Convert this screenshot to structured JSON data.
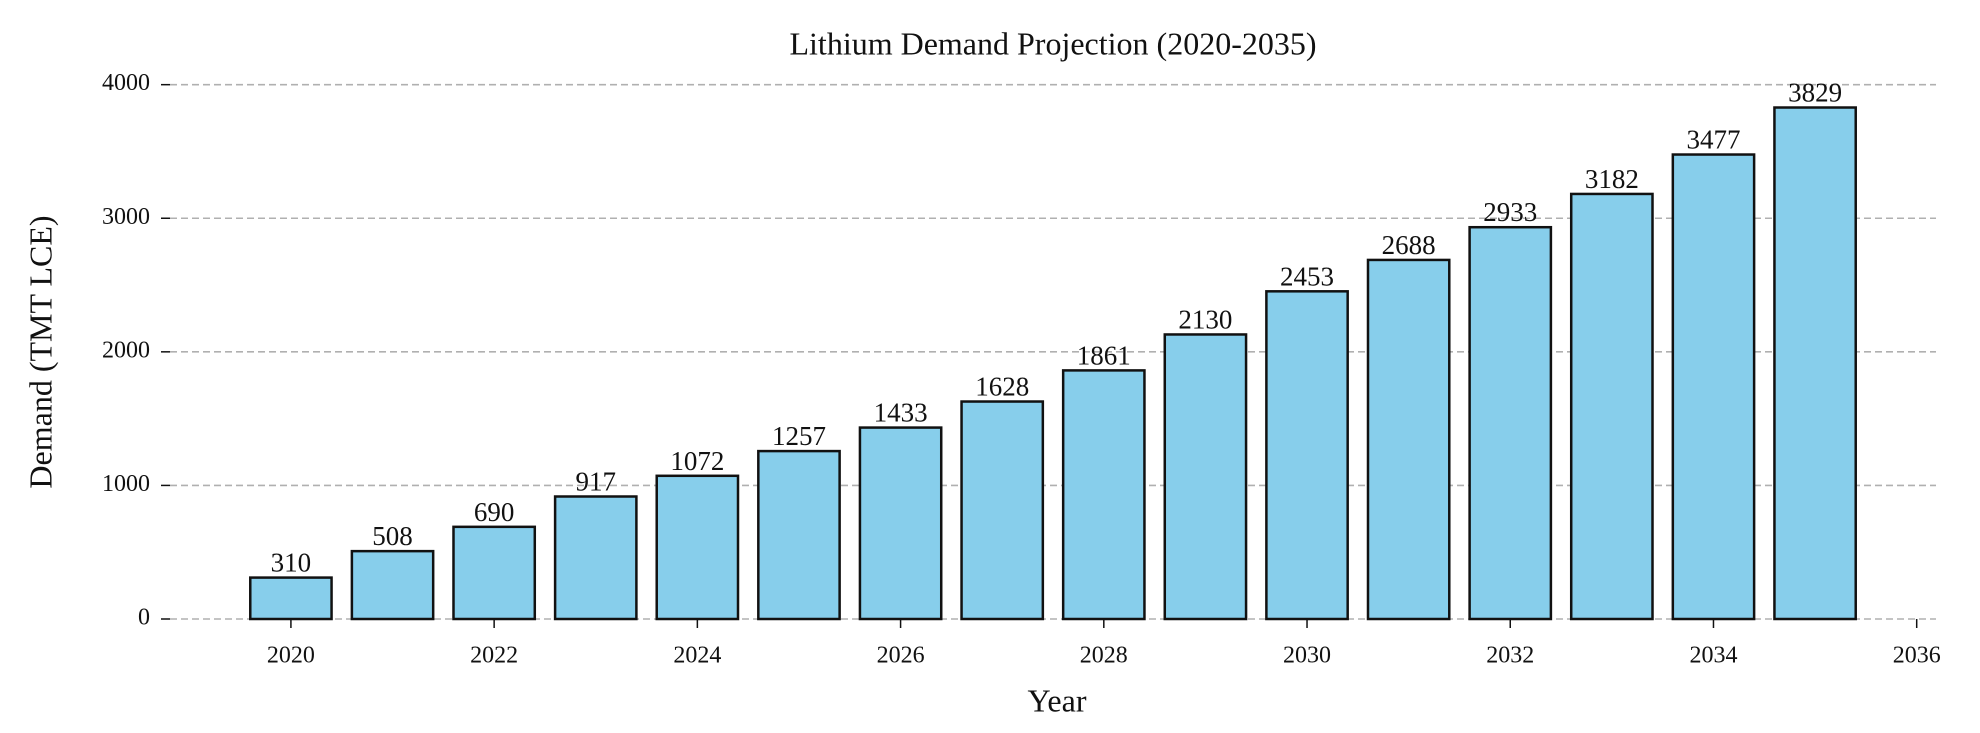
{
  "chart_data": {
    "type": "bar",
    "title": "Lithium Demand Projection (2020-2035)",
    "x_label": "Year",
    "y_label": "Demand (TMT LCE)",
    "x": [
      2020,
      2021,
      2022,
      2023,
      2024,
      2025,
      2026,
      2027,
      2028,
      2029,
      2030,
      2031,
      2032,
      2033,
      2034,
      2035
    ],
    "values": [
      310,
      508,
      690,
      917,
      1072,
      1257,
      1433,
      1628,
      1861,
      2130,
      2453,
      2688,
      2933,
      3182,
      3477,
      3829
    ],
    "color": "#87ceeb",
    "edgecolor": "#111111",
    "xlim": [
      2018.81,
      2036.19
    ],
    "xticks": [
      2020,
      2022,
      2024,
      2026,
      2028,
      2030,
      2032,
      2034,
      2036
    ],
    "ylim": [
      0,
      4020
    ],
    "yticks": [
      0,
      1000,
      2000,
      3000,
      4000
    ],
    "grid": true
  }
}
